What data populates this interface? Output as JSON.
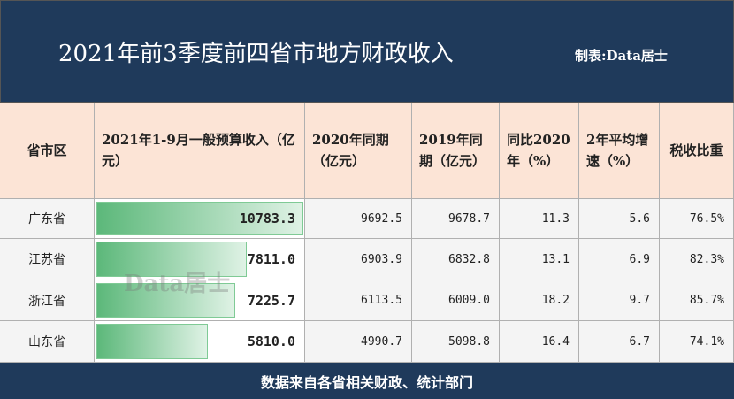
{
  "header": {
    "title": "2021年前3季度前四省市地方财政收入",
    "credit": "制表:Data居士"
  },
  "table": {
    "columns": [
      "省市区",
      "2021年1-9月一般预算收入（亿元）",
      "2020年同期（亿元）",
      "2019年同期（亿元）",
      "同比2020年（%）",
      "2年平均增速（%）",
      "税收比重"
    ],
    "rows": [
      [
        "广东省",
        {
          "value": 10783.3,
          "label": "10783.3"
        },
        "9692.5",
        "9678.7",
        "11.3",
        "5.6",
        "76.5%"
      ],
      [
        "江苏省",
        {
          "value": 7811.0,
          "label": "7811.0"
        },
        "6903.9",
        "6832.8",
        "13.1",
        "6.9",
        "82.3%"
      ],
      [
        "浙江省",
        {
          "value": 7225.7,
          "label": "7225.7"
        },
        "6113.5",
        "6009.0",
        "18.2",
        "9.7",
        "85.7%"
      ],
      [
        "山东省",
        {
          "value": 5810.0,
          "label": "5810.0"
        },
        "4990.7",
        "5098.8",
        "16.4",
        "6.7",
        "74.1%"
      ]
    ]
  },
  "watermark": "Data居士",
  "footer": "数据来自各省相关财政、统计部门"
}
